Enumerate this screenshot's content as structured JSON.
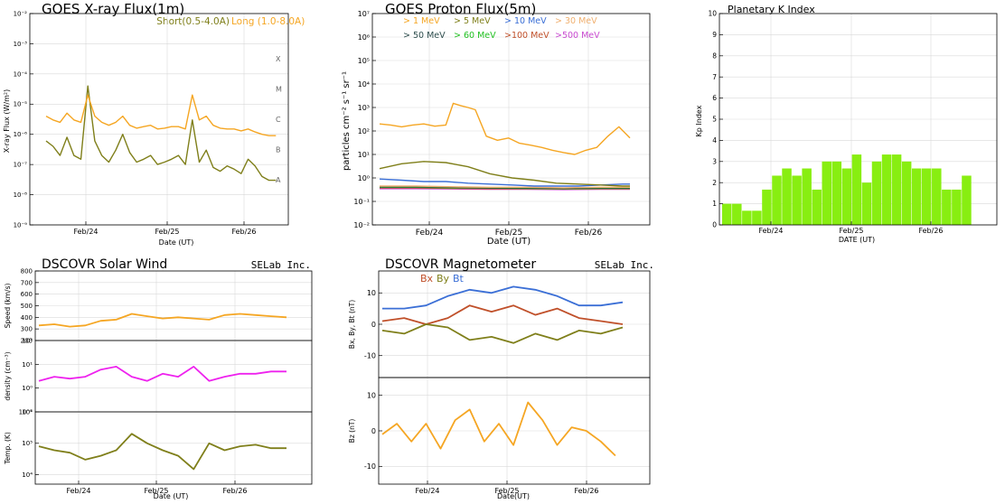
{
  "chart_data": [
    {
      "type": "line",
      "title": "GOES X-ray Flux(1m)",
      "ylabel": "X-ray Flux (W/m²)",
      "xlabel": "Date (UT)",
      "yscale": "log",
      "ylim": [
        1e-09,
        0.01
      ],
      "yticks": [
        1e-09,
        1e-08,
        1e-07,
        1e-06,
        1e-05,
        0.0001,
        0.001,
        0.01
      ],
      "ytick_labels": [
        "10⁻⁹",
        "10⁻⁸",
        "10⁻⁷",
        "10⁻⁶",
        "10⁻⁵",
        "10⁻⁴",
        "10⁻³",
        "10⁻²"
      ],
      "flare_classes": [
        "A",
        "B",
        "C",
        "M",
        "X"
      ],
      "xticks": [
        "Feb/24",
        "Feb/25",
        "Feb/26"
      ],
      "grid": true,
      "legend": "top-right",
      "series": [
        {
          "name": "Short(0.5-4.0A)",
          "color": "#7f7f1a",
          "x": [
            0,
            0.1,
            0.2,
            0.3,
            0.4,
            0.5,
            0.6,
            0.7,
            0.8,
            0.9,
            1.0,
            1.1,
            1.2,
            1.3,
            1.4,
            1.5,
            1.6,
            1.7,
            1.8,
            1.9,
            2.0,
            2.1,
            2.2,
            2.3,
            2.4,
            2.5,
            2.6,
            2.7,
            2.8,
            2.9,
            3.0,
            3.1,
            3.2,
            3.3
          ],
          "y": [
            6e-07,
            4e-07,
            2e-07,
            8e-07,
            2e-07,
            1.5e-07,
            4e-05,
            6e-07,
            2e-07,
            1.2e-07,
            3e-07,
            1e-06,
            2.5e-07,
            1.2e-07,
            1.5e-07,
            2e-07,
            1e-07,
            1.2e-07,
            1.5e-07,
            2e-07,
            1e-07,
            3e-06,
            1.2e-07,
            3e-07,
            8e-08,
            6e-08,
            9e-08,
            7e-08,
            5e-08,
            1.5e-07,
            9e-08,
            4e-08,
            3e-08,
            3e-08
          ]
        },
        {
          "name": "Long (1.0-8.0A)",
          "color": "#f5a623",
          "x": [
            0,
            0.1,
            0.2,
            0.3,
            0.4,
            0.5,
            0.6,
            0.7,
            0.8,
            0.9,
            1.0,
            1.1,
            1.2,
            1.3,
            1.4,
            1.5,
            1.6,
            1.7,
            1.8,
            1.9,
            2.0,
            2.1,
            2.2,
            2.3,
            2.4,
            2.5,
            2.6,
            2.7,
            2.8,
            2.9,
            3.0,
            3.1,
            3.2,
            3.3
          ],
          "y": [
            4e-06,
            3e-06,
            2.5e-06,
            5e-06,
            3e-06,
            2.5e-06,
            2e-05,
            4e-06,
            2.5e-06,
            2e-06,
            2.5e-06,
            4e-06,
            2e-06,
            1.6e-06,
            1.8e-06,
            2e-06,
            1.5e-06,
            1.6e-06,
            1.8e-06,
            1.8e-06,
            1.5e-06,
            2e-05,
            3e-06,
            4e-06,
            2e-06,
            1.6e-06,
            1.5e-06,
            1.5e-06,
            1.3e-06,
            1.5e-06,
            1.2e-06,
            1e-06,
            9e-07,
            9e-07
          ]
        }
      ]
    },
    {
      "type": "line",
      "title": "GOES Proton Flux(5m)",
      "ylabel": "particles cm⁻² s⁻¹ sr⁻¹",
      "xlabel": "Date (UT)",
      "yscale": "log",
      "ylim": [
        0.01,
        10000000
      ],
      "yticks": [
        0.01,
        0.1,
        1,
        10,
        100,
        1000,
        10000,
        100000,
        1000000,
        10000000
      ],
      "ytick_labels": [
        "10⁻²",
        "10⁻¹",
        "10⁰",
        "10¹",
        "10²",
        "10³",
        "10⁴",
        "10⁵",
        "10⁶",
        "10⁷"
      ],
      "xticks": [
        "Feb/24",
        "Feb/25",
        "Feb/26"
      ],
      "grid": true,
      "legend": "top",
      "series": [
        {
          "name": "> 1 MeV",
          "color": "#f5a623",
          "x": [
            0,
            0.15,
            0.3,
            0.45,
            0.6,
            0.75,
            0.9,
            1.0,
            1.1,
            1.2,
            1.3,
            1.45,
            1.6,
            1.75,
            1.9,
            2.05,
            2.2,
            2.35,
            2.5,
            2.65,
            2.8,
            2.95,
            3.1,
            3.25,
            3.4
          ],
          "y": [
            200,
            180,
            150,
            180,
            200,
            160,
            180,
            1500,
            1200,
            1000,
            800,
            60,
            40,
            50,
            30,
            25,
            20,
            15,
            12,
            10,
            15,
            20,
            60,
            150,
            50
          ]
        },
        {
          "name": "> 5 MeV",
          "color": "#7f7f1a",
          "x": [
            0,
            0.3,
            0.6,
            0.9,
            1.2,
            1.5,
            1.8,
            2.1,
            2.4,
            2.7,
            3.0,
            3.3,
            3.4
          ],
          "y": [
            2.5,
            4,
            5,
            4.5,
            3,
            1.5,
            1,
            0.8,
            0.6,
            0.55,
            0.5,
            0.45,
            0.45
          ]
        },
        {
          "name": "> 10 MeV",
          "color": "#3b6fd6",
          "x": [
            0,
            0.3,
            0.6,
            0.9,
            1.2,
            1.5,
            1.8,
            2.1,
            2.4,
            2.7,
            3.0,
            3.3,
            3.4
          ],
          "y": [
            0.9,
            0.8,
            0.7,
            0.7,
            0.6,
            0.55,
            0.5,
            0.45,
            0.45,
            0.45,
            0.5,
            0.55,
            0.55
          ]
        },
        {
          "name": "> 30 MeV",
          "color": "#f0b070",
          "x": [
            0,
            0.5,
            1.0,
            1.5,
            2.0,
            2.5,
            3.0,
            3.4
          ],
          "y": [
            0.45,
            0.45,
            0.42,
            0.4,
            0.4,
            0.38,
            0.4,
            0.4
          ]
        },
        {
          "name": "> 50 MeV",
          "color": "#2e4e4e",
          "x": [
            0,
            0.5,
            1.0,
            1.5,
            2.0,
            2.5,
            3.0,
            3.4
          ],
          "y": [
            0.42,
            0.42,
            0.4,
            0.38,
            0.38,
            0.36,
            0.38,
            0.38
          ]
        },
        {
          "name": "> 60 MeV",
          "color": "#22c022",
          "x": [
            0,
            0.5,
            1.0,
            1.5,
            2.0,
            2.5,
            3.0,
            3.4
          ],
          "y": [
            0.4,
            0.4,
            0.38,
            0.37,
            0.36,
            0.35,
            0.36,
            0.36
          ]
        },
        {
          "name": ">100 MeV",
          "color": "#c0502a",
          "x": [
            0,
            0.5,
            1.0,
            1.5,
            2.0,
            2.5,
            3.0,
            3.4
          ],
          "y": [
            0.38,
            0.38,
            0.36,
            0.35,
            0.35,
            0.34,
            0.35,
            0.35
          ]
        },
        {
          "name": ">500 MeV",
          "color": "#c84bd0",
          "x": [
            0,
            0.5,
            1.0,
            1.5,
            2.0,
            2.5,
            3.0,
            3.4
          ],
          "y": [
            0.35,
            0.35,
            0.34,
            0.33,
            0.33,
            0.32,
            0.33,
            0.33
          ]
        }
      ]
    },
    {
      "type": "bar",
      "title": "Planetary K Index",
      "ylabel": "Kp Index",
      "xlabel": "DATE (UT)",
      "ylim": [
        0,
        10
      ],
      "yticks": [
        0,
        1,
        2,
        3,
        4,
        5,
        6,
        7,
        8,
        9,
        10
      ],
      "xticks": [
        "Feb/24",
        "Feb/25",
        "Feb/26"
      ],
      "grid": true,
      "bar_color": "#88ee11",
      "values": [
        1.0,
        1.0,
        0.67,
        0.67,
        1.67,
        2.33,
        2.67,
        2.33,
        2.67,
        1.67,
        3.0,
        3.0,
        2.67,
        3.33,
        2.0,
        3.0,
        3.33,
        3.33,
        3.0,
        2.67,
        2.67,
        2.67,
        1.67,
        1.67,
        2.33
      ]
    },
    {
      "type": "line",
      "title": "DSCOVR Solar Wind",
      "credit": "SELab Inc.",
      "xlabel": "Date (UT)",
      "xticks": [
        "Feb/24",
        "Feb/25",
        "Feb/26"
      ],
      "panels": [
        {
          "ylabel": "Speed (km/s)",
          "ylim": [
            200,
            800
          ],
          "yticks": [
            200,
            300,
            400,
            500,
            600,
            700,
            800
          ],
          "color": "#f5a623",
          "x": [
            0,
            0.2,
            0.4,
            0.6,
            0.8,
            1.0,
            1.2,
            1.4,
            1.6,
            1.8,
            2.0,
            2.2,
            2.4,
            2.6,
            2.8,
            3.0,
            3.2
          ],
          "y": [
            330,
            340,
            320,
            330,
            370,
            380,
            430,
            410,
            390,
            400,
            390,
            380,
            420,
            430,
            420,
            410,
            400
          ]
        },
        {
          "ylabel": "density (cm⁻³)",
          "yscale": "log",
          "ylim": [
            0.1,
            100
          ],
          "yticks": [
            0.1,
            1,
            10,
            100
          ],
          "ytick_labels": [
            "10⁻¹",
            "10⁰",
            "10¹",
            "10²"
          ],
          "color": "#ee22ee",
          "x": [
            0,
            0.2,
            0.4,
            0.6,
            0.8,
            1.0,
            1.2,
            1.4,
            1.6,
            1.8,
            2.0,
            2.2,
            2.4,
            2.6,
            2.8,
            3.0,
            3.2
          ],
          "y": [
            2,
            3,
            2.5,
            3,
            6,
            8,
            3,
            2,
            4,
            3,
            8,
            2,
            3,
            4,
            4,
            5,
            5
          ]
        },
        {
          "ylabel": "Temp. (K)",
          "yscale": "log",
          "ylim": [
            5000,
            1000000
          ],
          "yticks": [
            10000,
            100000,
            1000000
          ],
          "ytick_labels": [
            "10⁴",
            "10⁵",
            "10⁶"
          ],
          "color": "#7f7f1a",
          "x": [
            0,
            0.2,
            0.4,
            0.6,
            0.8,
            1.0,
            1.2,
            1.4,
            1.6,
            1.8,
            2.0,
            2.2,
            2.4,
            2.6,
            2.8,
            3.0,
            3.2
          ],
          "y": [
            80000,
            60000,
            50000,
            30000,
            40000,
            60000,
            200000,
            100000,
            60000,
            40000,
            15000,
            100000,
            60000,
            80000,
            90000,
            70000,
            70000
          ]
        }
      ]
    },
    {
      "type": "line",
      "title": "DSCOVR Magnetometer",
      "credit": "SELab Inc.",
      "xlabel": "Date(UT)",
      "xticks": [
        "Feb/24",
        "Feb/25",
        "Feb/26"
      ],
      "legend_labels": [
        "Bx",
        "By",
        "Bt"
      ],
      "panels": [
        {
          "ylabel": "Bx, By, Bt (nT)",
          "ylim": [
            -17,
            17
          ],
          "yticks": [
            -10,
            0,
            10
          ],
          "series": [
            {
              "name": "Bx",
              "color": "#c0502a",
              "x": [
                0,
                0.3,
                0.6,
                0.9,
                1.2,
                1.5,
                1.8,
                2.1,
                2.4,
                2.7,
                3.0,
                3.3
              ],
              "y": [
                1,
                2,
                0,
                2,
                6,
                4,
                6,
                3,
                5,
                2,
                1,
                0
              ]
            },
            {
              "name": "By",
              "color": "#7f7f1a",
              "x": [
                0,
                0.3,
                0.6,
                0.9,
                1.2,
                1.5,
                1.8,
                2.1,
                2.4,
                2.7,
                3.0,
                3.3
              ],
              "y": [
                -2,
                -3,
                0,
                -1,
                -5,
                -4,
                -6,
                -3,
                -5,
                -2,
                -3,
                -1
              ]
            },
            {
              "name": "Bt",
              "color": "#3b6fd6",
              "x": [
                0,
                0.3,
                0.6,
                0.9,
                1.2,
                1.5,
                1.8,
                2.1,
                2.4,
                2.7,
                3.0,
                3.3
              ],
              "y": [
                5,
                5,
                6,
                9,
                11,
                10,
                12,
                11,
                9,
                6,
                6,
                7
              ]
            }
          ]
        },
        {
          "ylabel": "Bz (nT)",
          "ylim": [
            -15,
            15
          ],
          "yticks": [
            -10,
            0,
            10
          ],
          "series": [
            {
              "name": "Bz",
              "color": "#f5a623",
              "x": [
                0,
                0.2,
                0.4,
                0.6,
                0.8,
                1.0,
                1.2,
                1.4,
                1.6,
                1.8,
                2.0,
                2.2,
                2.4,
                2.6,
                2.8,
                3.0,
                3.2
              ],
              "y": [
                -1,
                2,
                -3,
                2,
                -5,
                3,
                6,
                -3,
                2,
                -4,
                8,
                3,
                -4,
                1,
                0,
                -3,
                -7
              ]
            }
          ]
        }
      ]
    }
  ]
}
